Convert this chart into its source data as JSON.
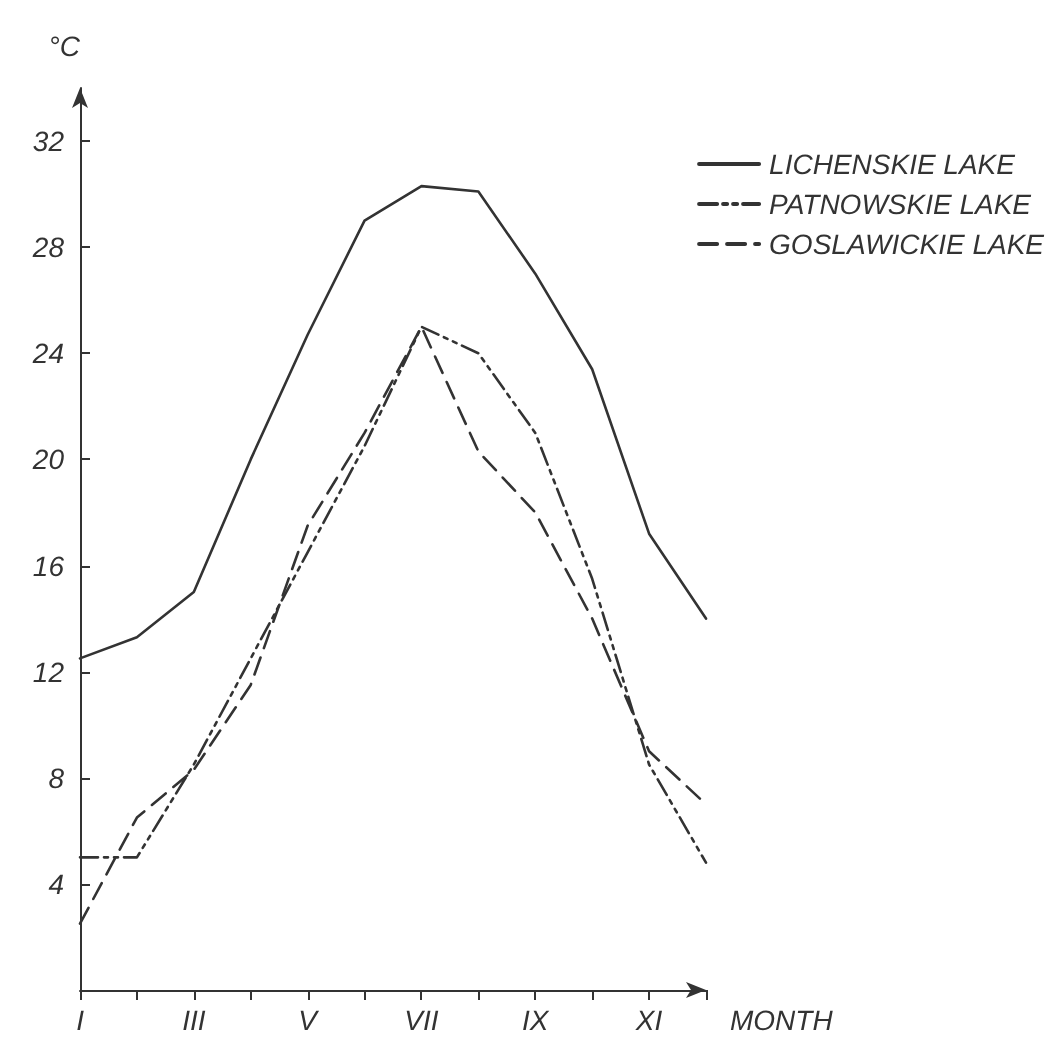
{
  "chart_data": {
    "type": "line",
    "xlabel": "MONTH",
    "ylabel": "°C",
    "categories": [
      "I",
      null,
      "III",
      null,
      "V",
      null,
      "VII",
      null,
      "IX",
      null,
      "XI",
      null
    ],
    "series": [
      {
        "name": "LICHENSKIE LAKE",
        "color": "#333333",
        "line_style": "solid",
        "values": [
          12.5,
          13.3,
          15,
          20,
          24.7,
          29,
          30.3,
          30.1,
          27,
          23.4,
          17.2,
          14
        ]
      },
      {
        "name": "PATNOWSKIE LAKE",
        "color": "#333333",
        "line_style": "dashdot",
        "values": [
          5,
          5,
          8.5,
          12.5,
          16.5,
          20.5,
          25,
          24,
          21,
          15.5,
          8.5,
          4.8
        ]
      },
      {
        "name": "GOSLAWICKIE LAKE",
        "color": "#333333",
        "line_style": "dashed",
        "values": [
          2.5,
          6.5,
          8.3,
          11.5,
          17.5,
          21,
          25,
          20.3,
          18,
          14,
          9,
          7
        ]
      }
    ],
    "ylim": [
      0,
      34
    ],
    "yticks": [
      4,
      8,
      12,
      16,
      20,
      24,
      28,
      32
    ],
    "grid": false,
    "legend": "top right",
    "marker": "none"
  }
}
